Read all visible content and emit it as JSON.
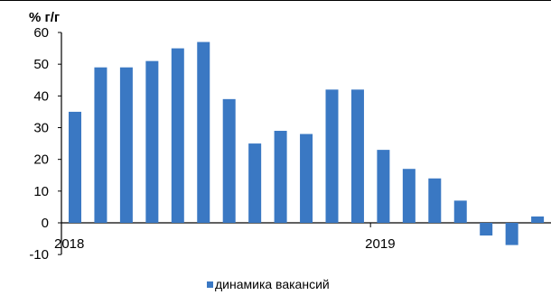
{
  "chart_data": {
    "type": "bar",
    "unit_label": "% г/г",
    "x_tick_labels": [
      {
        "label": "2018",
        "index": 0
      },
      {
        "label": "2019",
        "index": 12
      }
    ],
    "y_ticks": [
      -10,
      0,
      10,
      20,
      30,
      40,
      50,
      60
    ],
    "ylim": [
      -10,
      60
    ],
    "grid": false,
    "legend_position": "bottom",
    "series": [
      {
        "name": "динамика вакансий",
        "color": "#3a78c3",
        "values": [
          35,
          49,
          49,
          51,
          55,
          57,
          39,
          25,
          29,
          28,
          42,
          42,
          23,
          17,
          14,
          7,
          -4,
          -7,
          2
        ]
      }
    ]
  }
}
